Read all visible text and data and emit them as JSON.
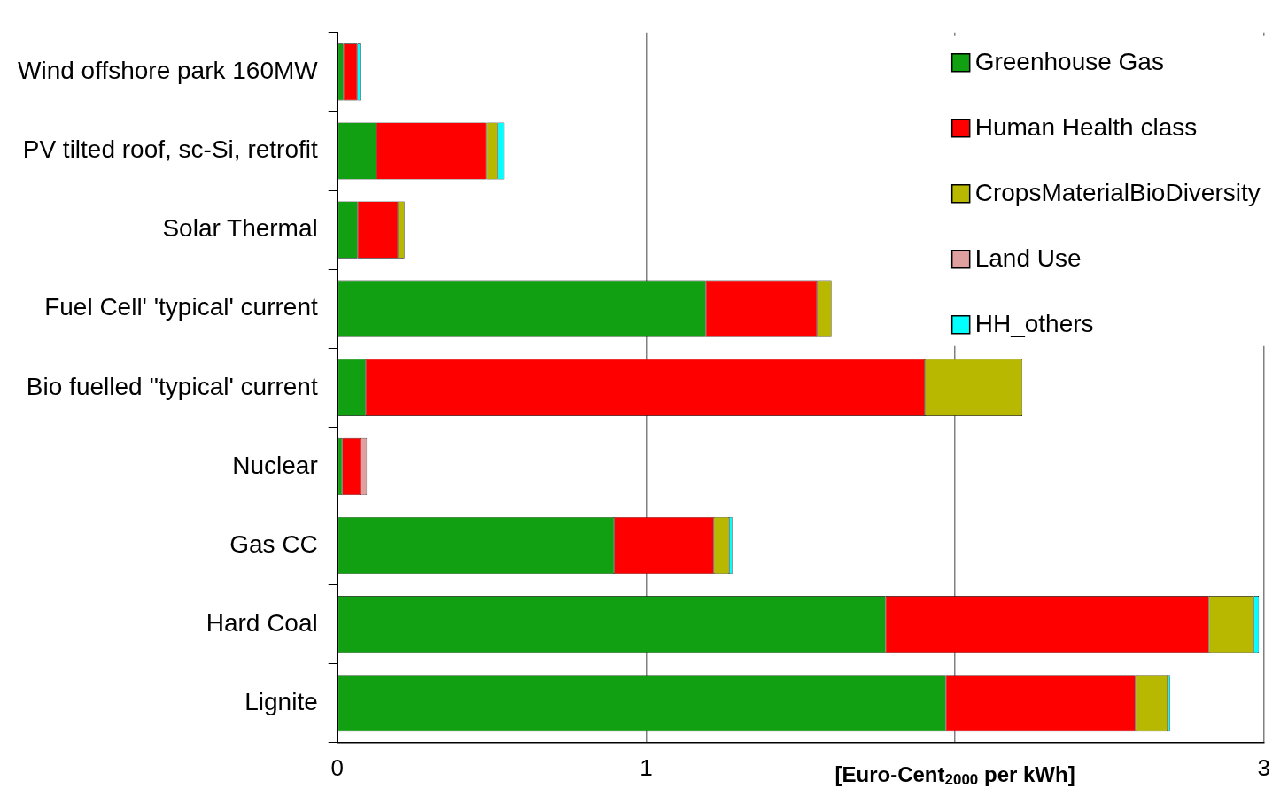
{
  "chart_data": {
    "type": "bar",
    "orientation": "horizontal",
    "stacked": true,
    "xlabel": "[Euro-Cent$_{2000}$ per kWh]",
    "categories": [
      "Wind offshore park 160MW",
      "PV tilted roof, sc-Si, retrofit",
      "Solar Thermal",
      "Fuel Cell' 'typical' current",
      "Bio fuelled ''typical' current",
      "Nuclear",
      "Gas CC",
      "Hard Coal",
      "Lignite"
    ],
    "series": [
      {
        "name": "Greenhouse Gas",
        "color": "#11a011",
        "values": [
          0.02,
          0.127,
          0.066,
          1.193,
          0.092,
          0.016,
          0.896,
          1.775,
          1.97
        ]
      },
      {
        "name": "Human Health class",
        "color": "#ff0000",
        "values": [
          0.045,
          0.357,
          0.13,
          0.36,
          1.81,
          0.06,
          0.323,
          1.047,
          0.614
        ]
      },
      {
        "name": "CropsMaterialBioDiversity",
        "color": "#b8b800",
        "values": [
          null,
          0.035,
          0.022,
          0.047,
          0.316,
          null,
          0.05,
          0.146,
          0.104
        ]
      },
      {
        "name": "Land Use",
        "color": "#e0a0a0",
        "values": [
          null,
          null,
          null,
          null,
          null,
          0.02,
          null,
          null,
          null
        ]
      },
      {
        "name": "HH_others",
        "color": "#00ffff",
        "values": [
          0.01,
          0.022,
          null,
          null,
          null,
          null,
          0.01,
          0.016,
          0.008
        ]
      }
    ],
    "xlim": [
      0,
      3
    ],
    "xticks": [
      0,
      1,
      {
        "value": 2,
        "label": null
      },
      3
    ],
    "grid": "x",
    "legend": "top right"
  }
}
